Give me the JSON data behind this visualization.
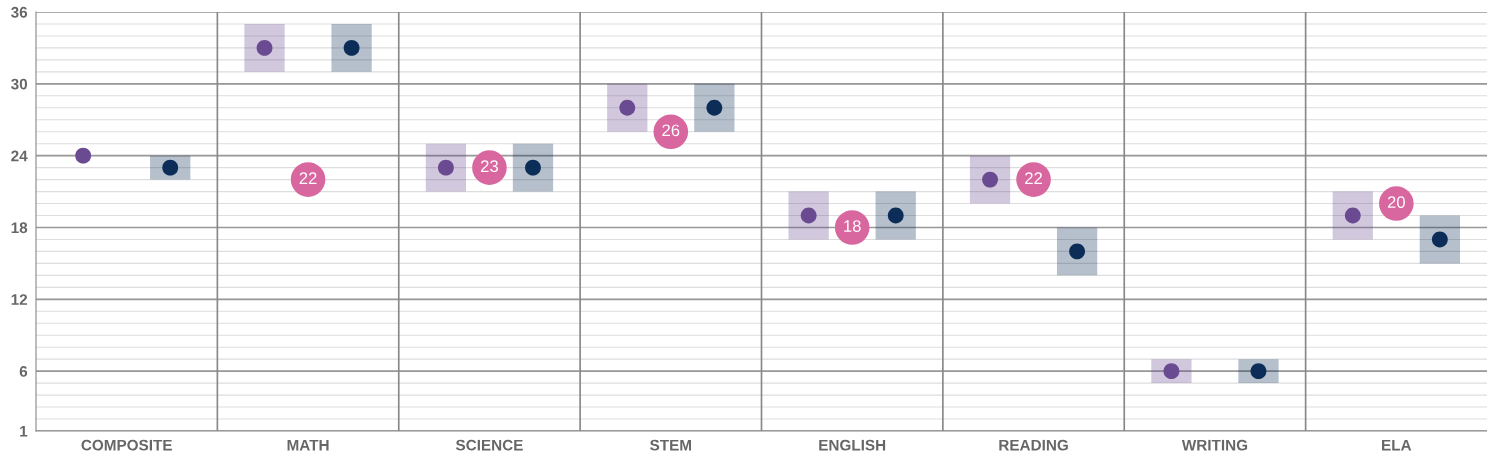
{
  "chart_data": {
    "type": "scatter",
    "categories": [
      "COMPOSITE",
      "MATH",
      "SCIENCE",
      "STEM",
      "ENGLISH",
      "READING",
      "WRITING",
      "ELA"
    ],
    "series": [
      {
        "color": "#6a4a91",
        "values": [
          24,
          33,
          23,
          28,
          19,
          22,
          6,
          19
        ],
        "errors": [
          null,
          2,
          2,
          2,
          2,
          2,
          1,
          2
        ]
      },
      {
        "color": "#d9679f",
        "values": [
          null,
          22,
          23,
          26,
          18,
          22,
          null,
          20
        ],
        "value_labels": [
          null,
          "22",
          "23",
          "26",
          "18",
          "22",
          null,
          "20"
        ]
      },
      {
        "color": "#0b2d57",
        "values": [
          23,
          33,
          23,
          28,
          19,
          16,
          6,
          17
        ],
        "errors": [
          1,
          2,
          2,
          2,
          2,
          2,
          1,
          2
        ]
      }
    ],
    "ylim": [
      1,
      36
    ],
    "yticks": [
      1,
      6,
      12,
      18,
      24,
      30,
      36
    ],
    "grid": "y",
    "marker": "circle",
    "legend": false
  }
}
